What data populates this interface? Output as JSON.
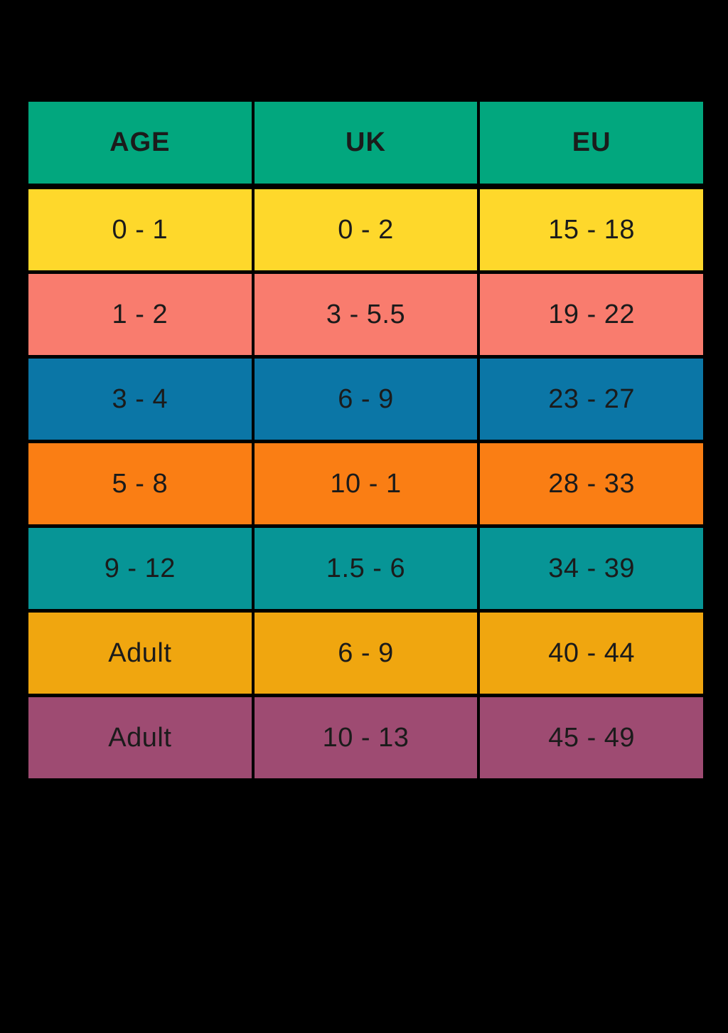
{
  "page": {
    "background": "#000000",
    "text_color": "#1b1b1b"
  },
  "table": {
    "header": {
      "bg": "#02a77e",
      "columns": [
        "AGE",
        "UK",
        "EU"
      ]
    },
    "rows": [
      {
        "bg": "#fed82b",
        "cells": [
          "0 - 1",
          "0 - 2",
          "15 - 18"
        ]
      },
      {
        "bg": "#f97c6e",
        "cells": [
          "1 - 2",
          "3 - 5.5",
          "19 - 22"
        ]
      },
      {
        "bg": "#0b76a6",
        "cells": [
          "3 - 4",
          "6 - 9",
          "23 - 27"
        ]
      },
      {
        "bg": "#fa7e14",
        "cells": [
          "5 - 8",
          "10 - 1",
          "28 - 33"
        ]
      },
      {
        "bg": "#079596",
        "cells": [
          "9 - 12",
          "1.5 - 6",
          "34 - 39"
        ]
      },
      {
        "bg": "#f0a60f",
        "cells": [
          "Adult",
          "6 - 9",
          "40 - 44"
        ]
      },
      {
        "bg": "#9e4b72",
        "cells": [
          "Adult",
          "10 - 13",
          "45 - 49"
        ]
      }
    ]
  },
  "chart_data": {
    "type": "table",
    "title": "",
    "columns": [
      "AGE",
      "UK",
      "EU"
    ],
    "rows": [
      [
        "0 - 1",
        "0 - 2",
        "15 - 18"
      ],
      [
        "1 - 2",
        "3 - 5.5",
        "19 - 22"
      ],
      [
        "3 - 4",
        "6 - 9",
        "23 - 27"
      ],
      [
        "5 - 8",
        "10 - 1",
        "28 - 33"
      ],
      [
        "9 - 12",
        "1.5 - 6",
        "34 - 39"
      ],
      [
        "Adult",
        "6 - 9",
        "40 - 44"
      ],
      [
        "Adult",
        "10 - 13",
        "45 - 49"
      ]
    ],
    "layout_hints": {
      "header_bg": "#02a77e",
      "row_colors": [
        "#fed82b",
        "#f97c6e",
        "#0b76a6",
        "#fa7e14",
        "#079596",
        "#f0a60f",
        "#9e4b72"
      ],
      "background": "#000000",
      "grid_lines": "black-separators"
    }
  }
}
